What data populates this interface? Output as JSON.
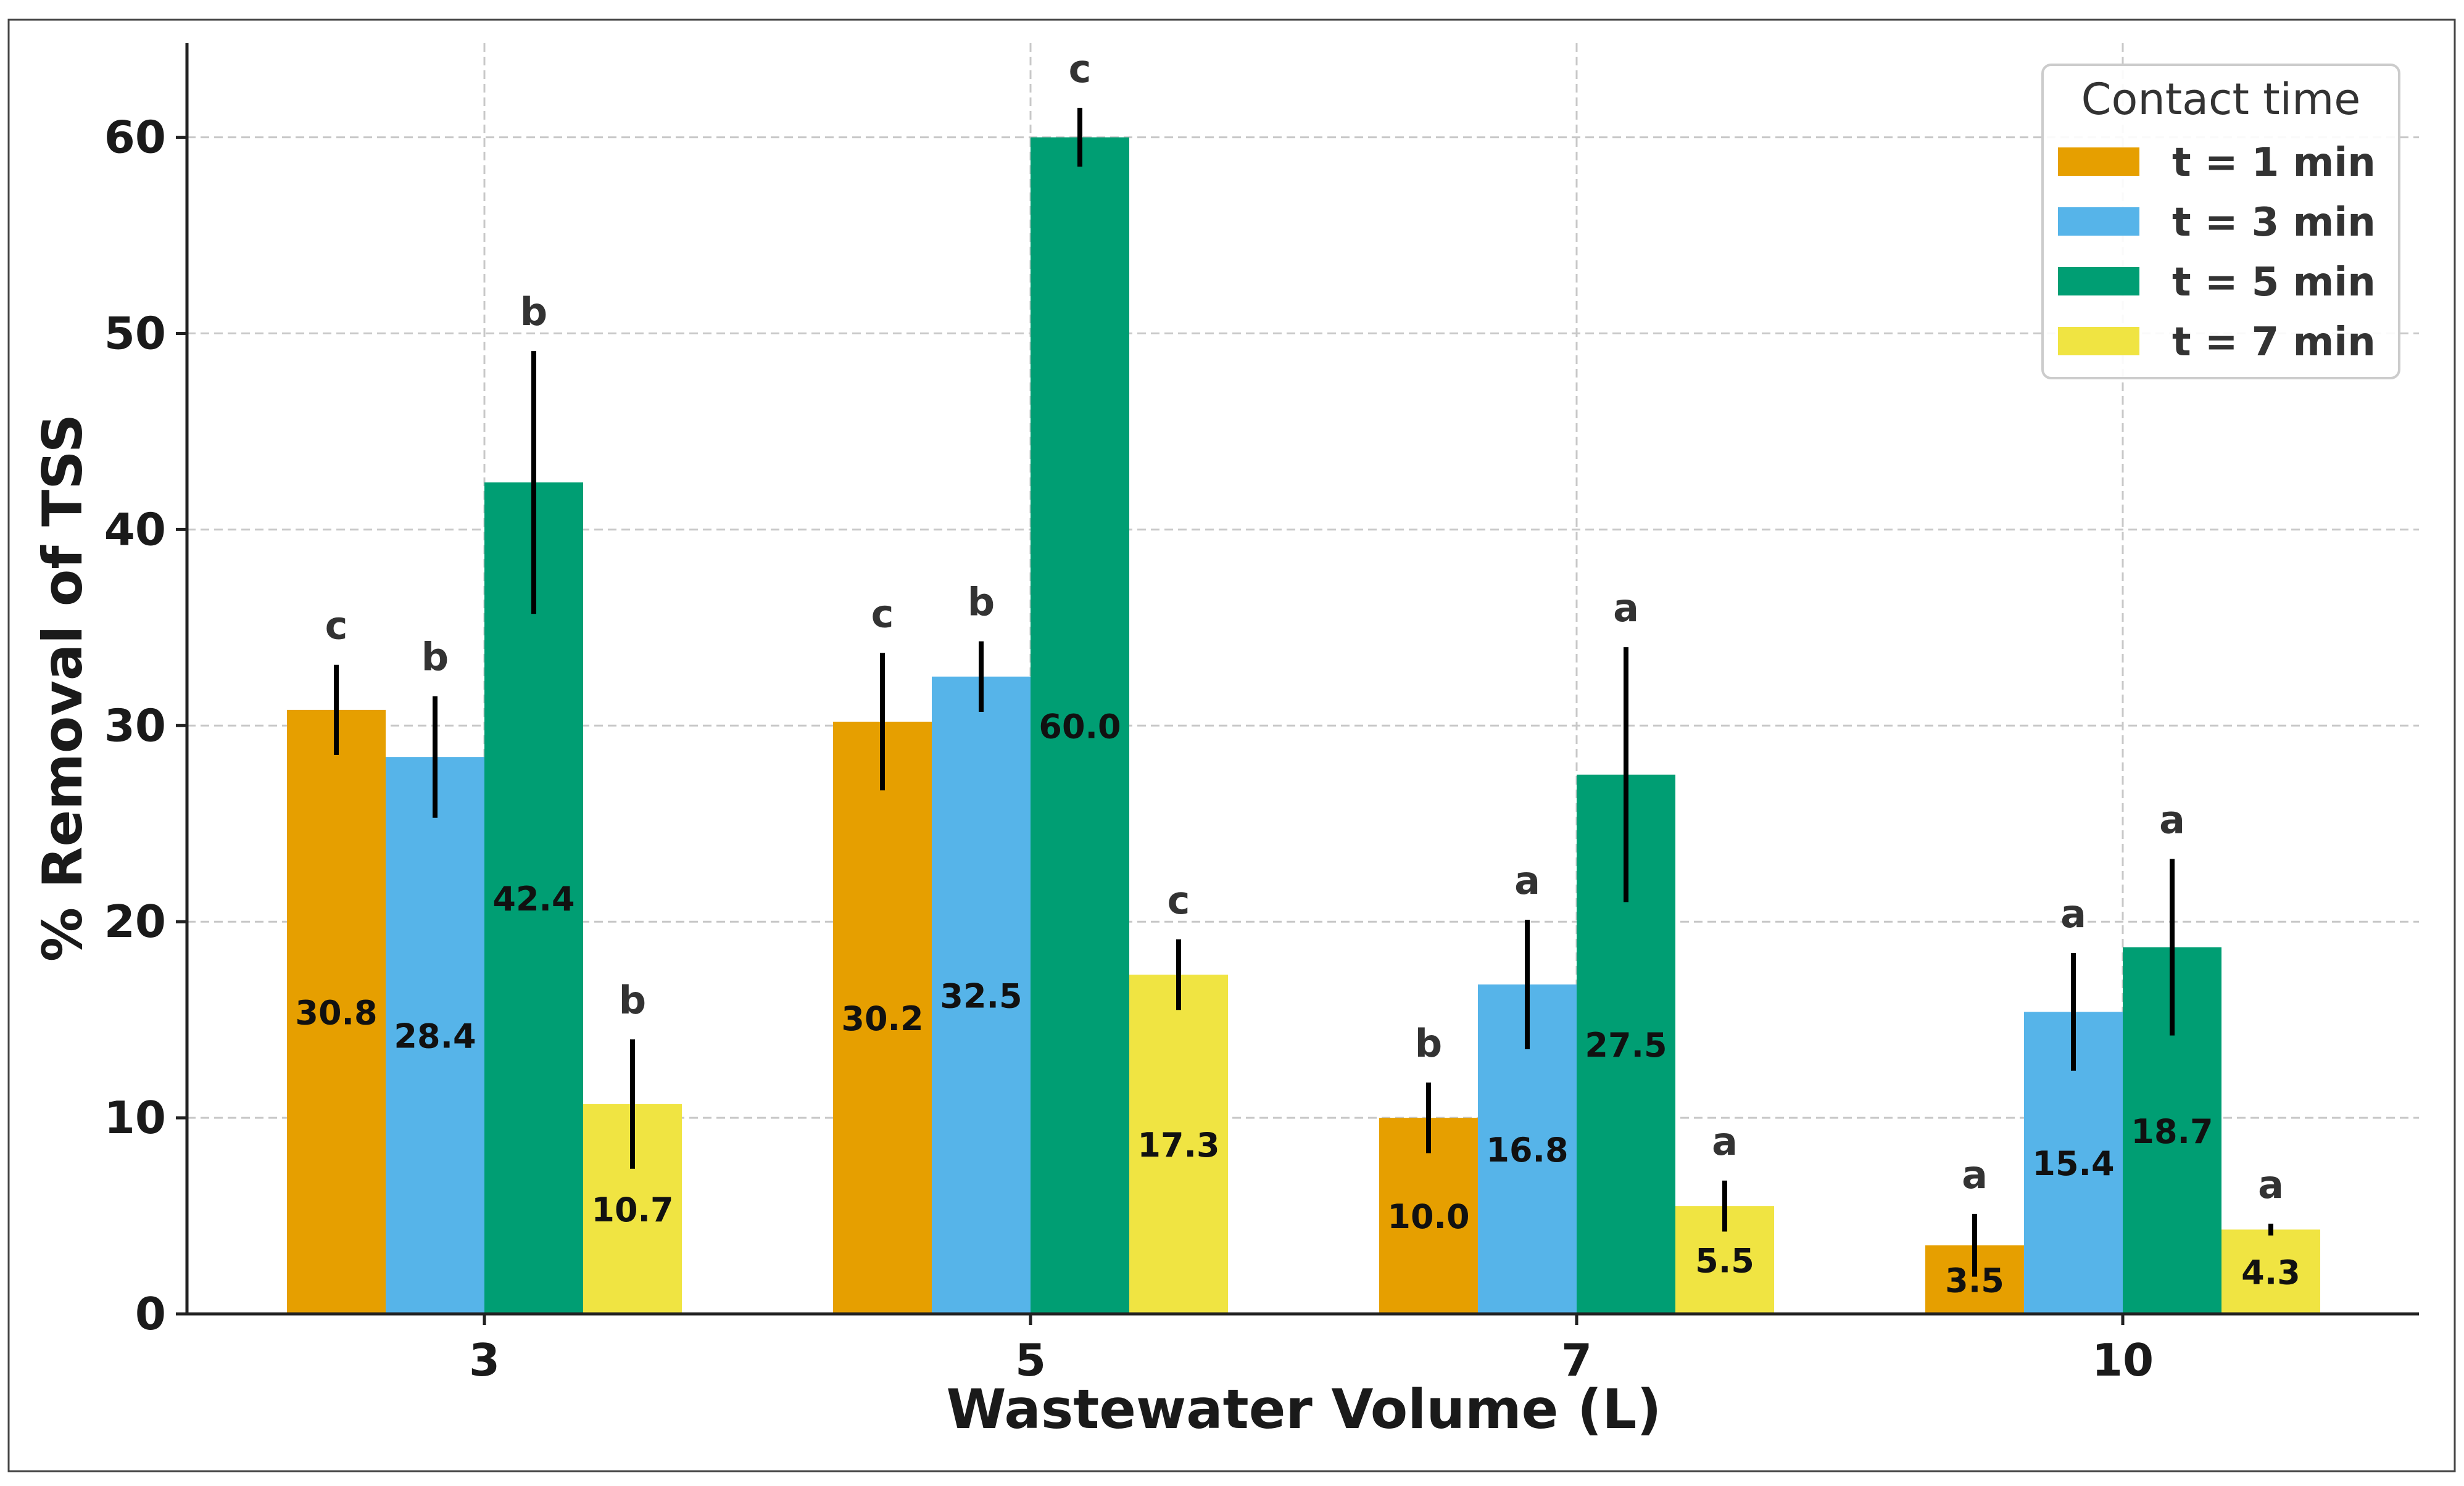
{
  "chart_data": {
    "type": "bar",
    "xlabel": "Wastewater Volume (L)",
    "ylabel": "% Removal of TSS",
    "categories": [
      "3",
      "5",
      "7",
      "10"
    ],
    "ylim": [
      0,
      64.8
    ],
    "yticks": [
      0,
      10,
      20,
      30,
      40,
      50,
      60
    ],
    "ytick_labels": [
      "0",
      "10",
      "20",
      "30",
      "40",
      "50",
      "60"
    ],
    "grid": true,
    "legend": {
      "title": "Contact time",
      "position": "top-right"
    },
    "series": [
      {
        "name": "t = 1 min",
        "color": "#E69F00",
        "values": [
          30.8,
          30.2,
          10.0,
          3.5
        ],
        "value_labels": [
          "30.8",
          "30.2",
          "10.0",
          "3.5"
        ],
        "errors": [
          2.3,
          3.5,
          1.8,
          1.6
        ],
        "letters": [
          "c",
          "c",
          "b",
          "a"
        ]
      },
      {
        "name": "t = 3 min",
        "color": "#56B4E9",
        "values": [
          28.4,
          32.5,
          16.8,
          15.4
        ],
        "value_labels": [
          "28.4",
          "32.5",
          "16.8",
          "15.4"
        ],
        "errors": [
          3.1,
          1.8,
          3.3,
          3.0
        ],
        "letters": [
          "b",
          "b",
          "a",
          "a"
        ]
      },
      {
        "name": "t = 5 min",
        "color": "#009E73",
        "values": [
          42.4,
          60.0,
          27.5,
          18.7
        ],
        "value_labels": [
          "42.4",
          "60.0",
          "27.5",
          "18.7"
        ],
        "errors": [
          6.7,
          1.5,
          6.5,
          4.5
        ],
        "letters": [
          "b",
          "c",
          "a",
          "a"
        ]
      },
      {
        "name": "t = 7 min",
        "color": "#F0E442",
        "values": [
          10.7,
          17.3,
          5.5,
          4.3
        ],
        "value_labels": [
          "10.7",
          "17.3",
          "5.5",
          "4.3"
        ],
        "errors": [
          3.3,
          1.8,
          1.3,
          0.3
        ],
        "letters": [
          "b",
          "c",
          "a",
          "a"
        ]
      }
    ]
  }
}
